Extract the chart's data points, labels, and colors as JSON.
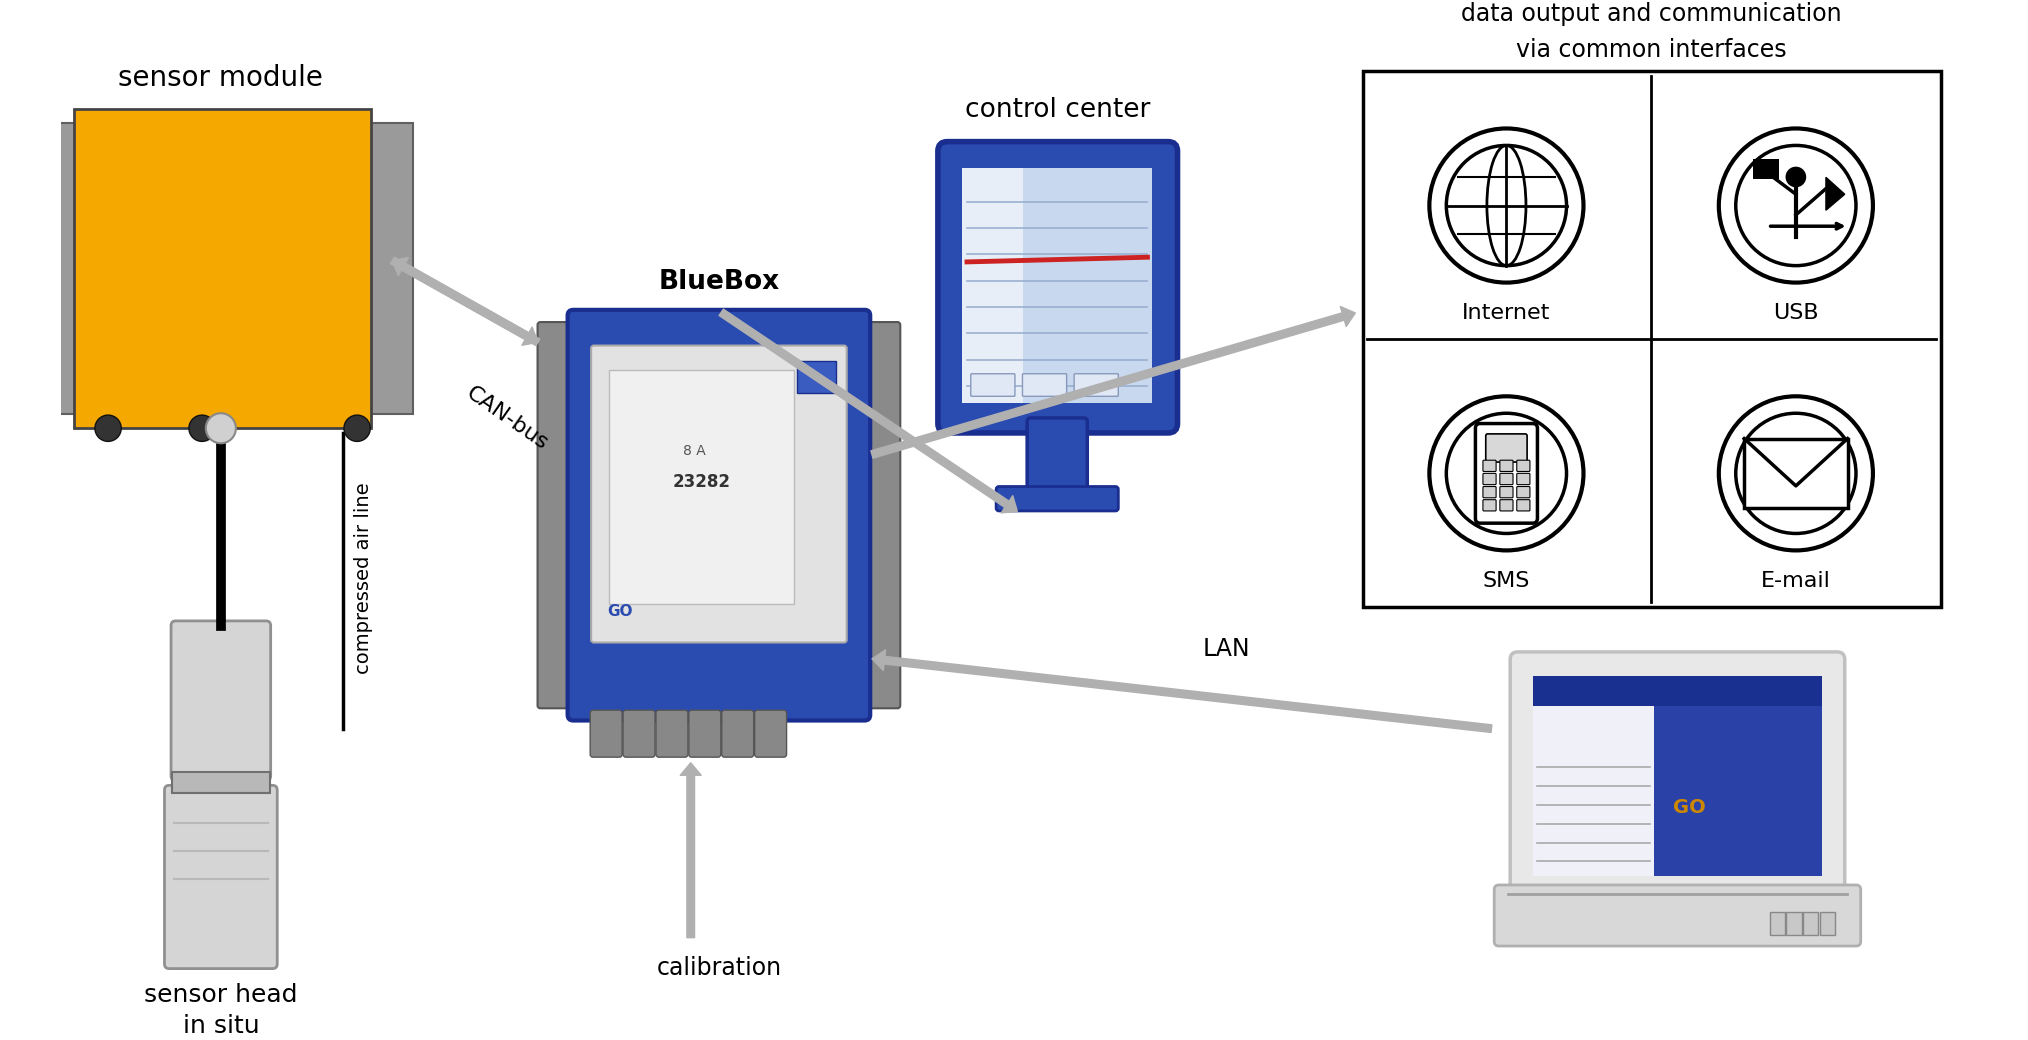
{
  "bg_color": "#ffffff",
  "labels": {
    "sensor_module": "sensor module",
    "control_center": "control center",
    "data_output_line1": "data output and communication",
    "data_output_line2": "via common interfaces",
    "bluebox": "BlueBox",
    "can_bus": "CAN-bus",
    "compressed_air": "compressed air line",
    "sensor_head": "sensor head\nin situ",
    "lan": "LAN",
    "calibration": "calibration",
    "internet": "Internet",
    "usb": "USB",
    "sms": "SMS",
    "email": "E-mail"
  },
  "colors": {
    "yellow": "#F5A800",
    "gray_side": "#9a9a9a",
    "blue_dark": "#1a2e8f",
    "blue_mid": "#2a4bb0",
    "blue_box_fill": "#3a5bc0",
    "arrow": "#b0b0b0",
    "silver_light": "#d5d5d5",
    "silver_mid": "#b8b8b8",
    "silver_dark": "#909090",
    "black": "#000000",
    "white": "#ffffff",
    "screen_light": "#d0dcf0",
    "laptop_blue": "#3a50b8"
  }
}
